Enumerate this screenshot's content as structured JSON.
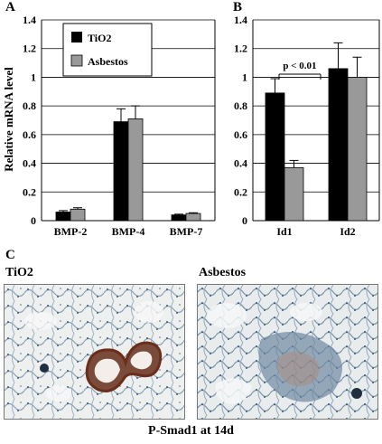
{
  "panels": {
    "a": "A",
    "b": "B",
    "c": "C"
  },
  "legend": {
    "tio2": "TiO2",
    "asbestos": "Asbestos"
  },
  "colors": {
    "tio2": "#000000",
    "asbestos": "#999999",
    "stain_brown": "#8b3a22",
    "tissue_blue": "#5b7a9a"
  },
  "chart_data": [
    {
      "type": "bar",
      "panel": "A",
      "ylabel": "Relative mRNA level",
      "ylim": [
        0,
        1.4
      ],
      "yticks": [
        0,
        0.2,
        0.4,
        0.6,
        0.8,
        1,
        1.2,
        1.4
      ],
      "categories": [
        "BMP-2",
        "BMP-4",
        "BMP-7"
      ],
      "series": [
        {
          "name": "TiO2",
          "values": [
            0.06,
            0.69,
            0.04
          ],
          "errors": [
            0.01,
            0.09,
            0.005
          ]
        },
        {
          "name": "Asbestos",
          "values": [
            0.08,
            0.71,
            0.05
          ],
          "errors": [
            0.01,
            0.09,
            0.005
          ]
        }
      ],
      "legend_position": "top-left",
      "grid": true
    },
    {
      "type": "bar",
      "panel": "B",
      "ylim": [
        0,
        1.4
      ],
      "yticks": [
        0,
        0.2,
        0.4,
        0.6,
        0.8,
        1,
        1.2,
        1.4
      ],
      "categories": [
        "Id1",
        "Id2"
      ],
      "series": [
        {
          "name": "TiO2",
          "values": [
            0.89,
            1.06
          ],
          "errors": [
            0.1,
            0.18
          ]
        },
        {
          "name": "Asbestos",
          "values": [
            0.37,
            1.0
          ],
          "errors": [
            0.05,
            0.14
          ]
        }
      ],
      "annotation": "p < 0.01",
      "grid": true
    }
  ],
  "micrographs": {
    "left_title": "TiO2",
    "right_title": "Asbestos",
    "caption": "P-Smad1 at 14d"
  }
}
